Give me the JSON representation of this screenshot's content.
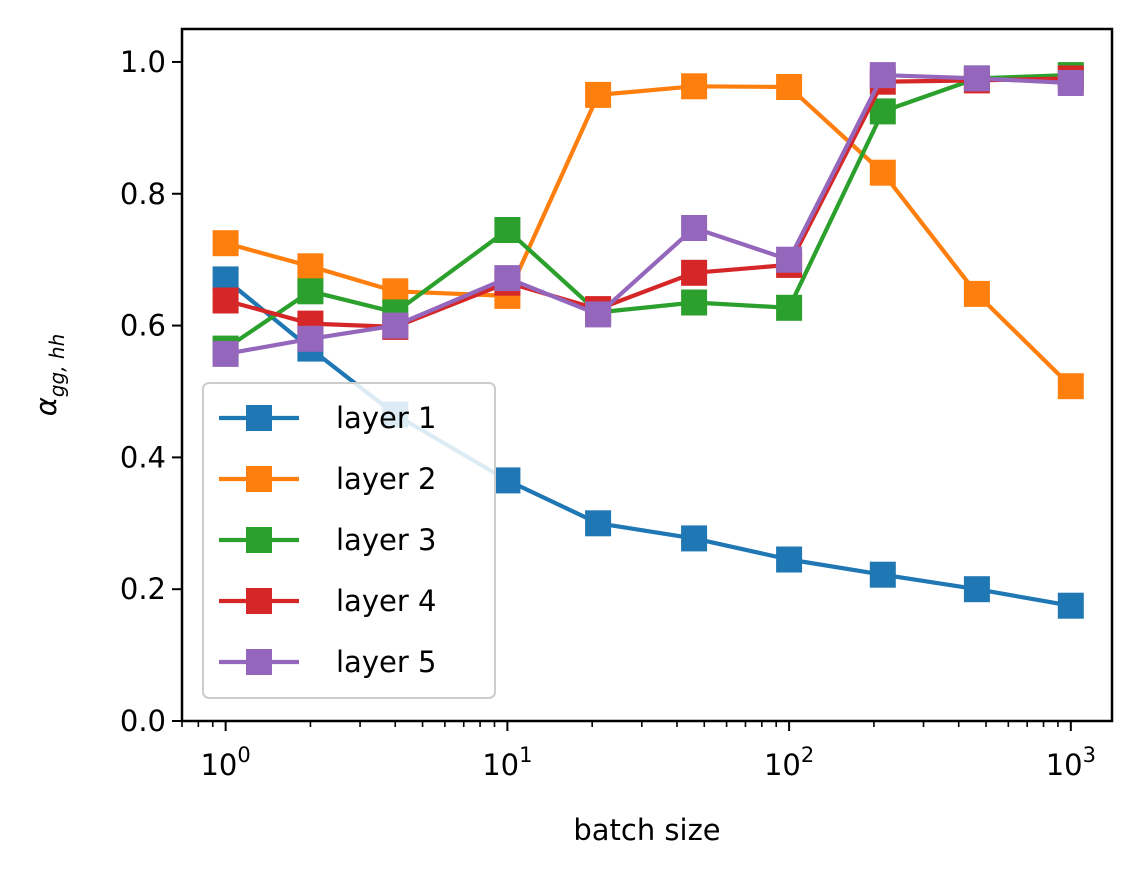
{
  "chart_data": {
    "type": "line",
    "title": "",
    "xlabel": "batch size",
    "ylabel": "α",
    "ylabel_subscript": "gg, hh",
    "xscale": "log",
    "xlim": [
      0.7,
      1400
    ],
    "ylim": [
      0,
      1.05
    ],
    "x_ticks": [
      {
        "value": 1,
        "base": "10",
        "exp": "0"
      },
      {
        "value": 10,
        "base": "10",
        "exp": "1"
      },
      {
        "value": 100,
        "base": "10",
        "exp": "2"
      },
      {
        "value": 1000,
        "base": "10",
        "exp": "3"
      }
    ],
    "y_ticks": [
      "0.0",
      "0.2",
      "0.4",
      "0.6",
      "0.8",
      "1.0"
    ],
    "legend_position": "lower-left",
    "x": [
      1,
      2,
      4,
      10,
      21,
      46,
      100,
      215,
      464,
      1000
    ],
    "series": [
      {
        "name": "layer 1",
        "color": "#1f77b4",
        "values": [
          0.67,
          0.565,
          0.465,
          0.365,
          0.3,
          0.277,
          0.245,
          0.222,
          0.2,
          0.175
        ]
      },
      {
        "name": "layer 2",
        "color": "#ff7f0e",
        "values": [
          0.725,
          0.69,
          0.652,
          0.645,
          0.95,
          0.963,
          0.962,
          0.832,
          0.648,
          0.508
        ]
      },
      {
        "name": "layer 3",
        "color": "#2ca02c",
        "values": [
          0.565,
          0.652,
          0.62,
          0.745,
          0.62,
          0.635,
          0.627,
          0.925,
          0.975,
          0.98
        ]
      },
      {
        "name": "layer 4",
        "color": "#d62728",
        "values": [
          0.638,
          0.603,
          0.598,
          0.665,
          0.625,
          0.68,
          0.692,
          0.97,
          0.972,
          0.975
        ]
      },
      {
        "name": "layer 5",
        "color": "#9467bd",
        "values": [
          0.557,
          0.58,
          0.6,
          0.672,
          0.617,
          0.748,
          0.7,
          0.98,
          0.975,
          0.968
        ]
      }
    ]
  }
}
